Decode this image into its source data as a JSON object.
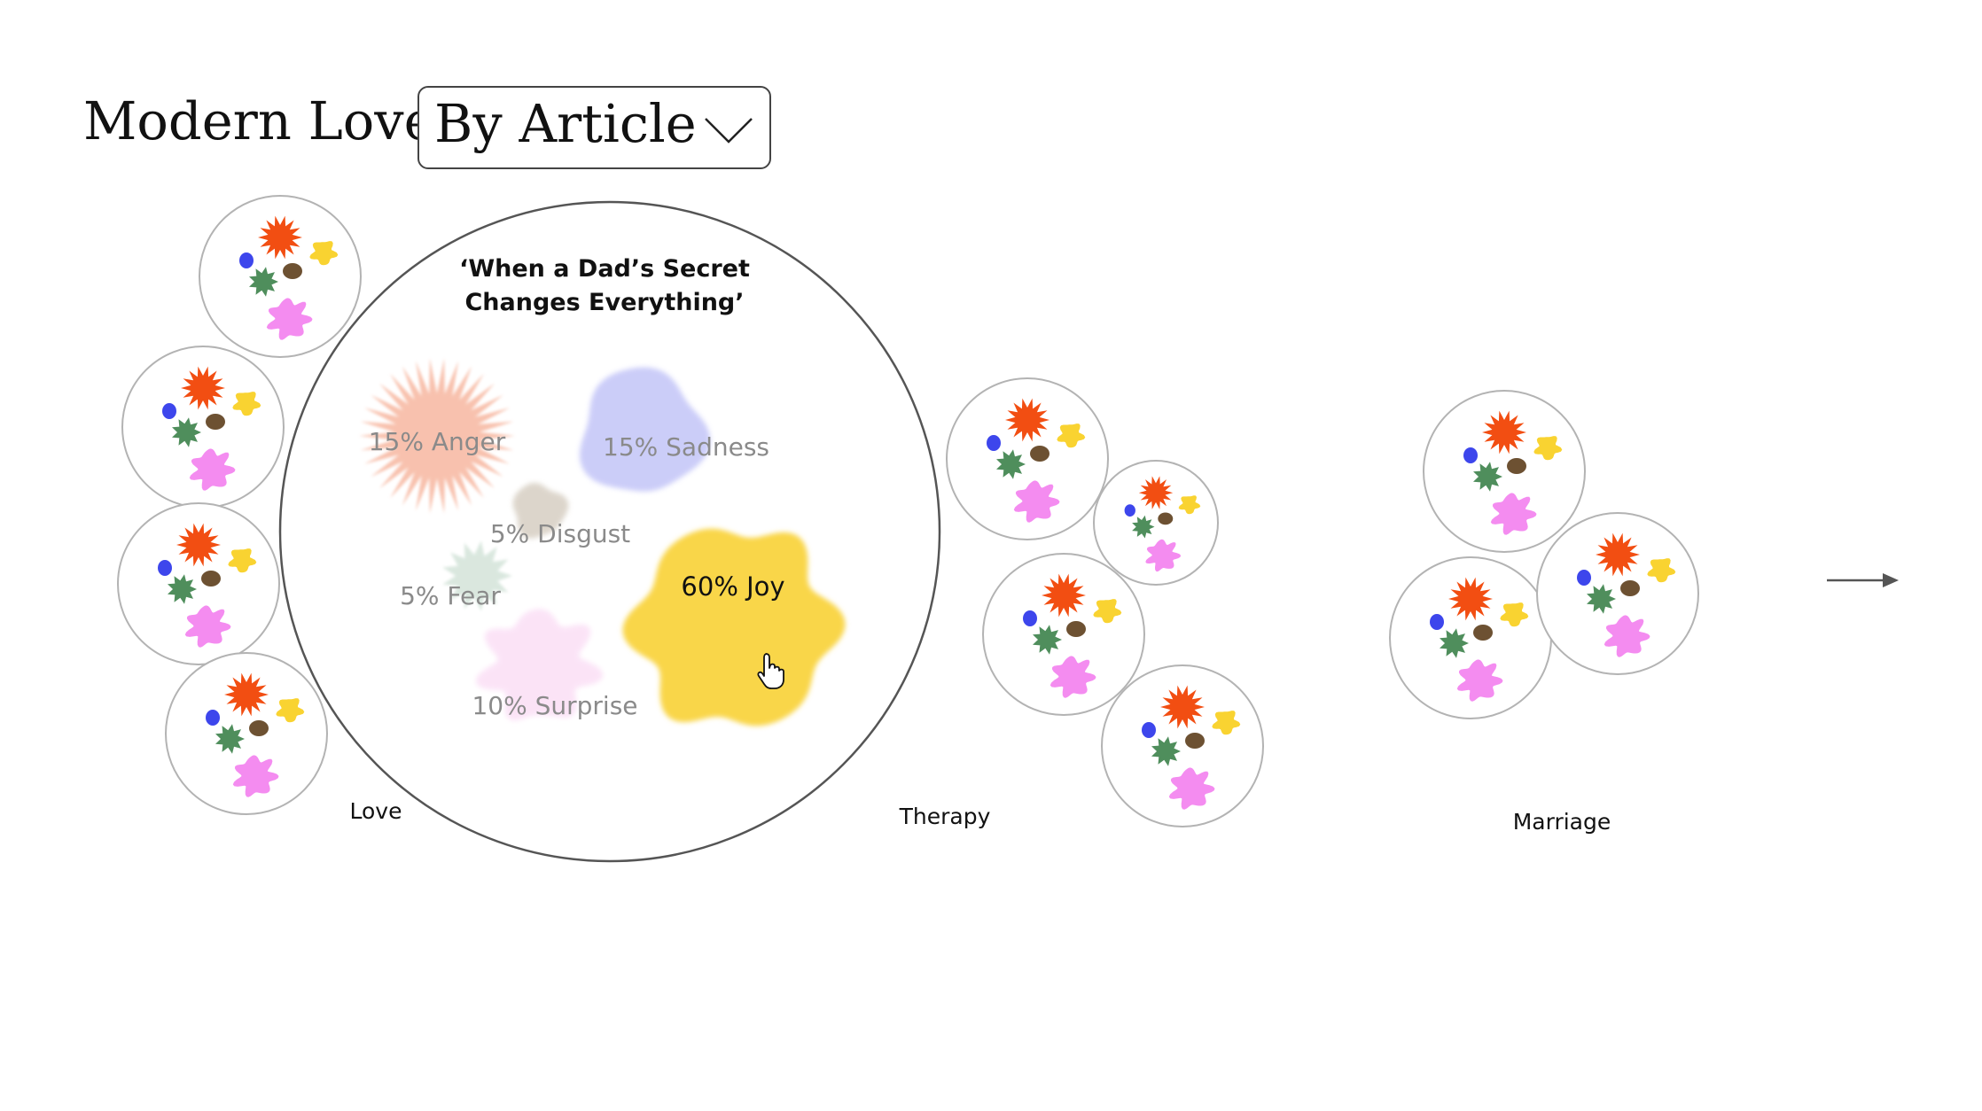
{
  "header": {
    "title": "Modern Love",
    "view_select": {
      "selected": "By Article"
    }
  },
  "groups": [
    {
      "label": "Love"
    },
    {
      "label": "Therapy"
    },
    {
      "label": "Marriage"
    }
  ],
  "featured_article": {
    "title_line1": "‘When a Dad’s Secret",
    "title_line2": "Changes Everything’",
    "emotions": [
      {
        "name": "Anger",
        "label": "15% Anger",
        "percent": 15,
        "color": "#f5a48a",
        "highlighted": false
      },
      {
        "name": "Sadness",
        "label": "15% Sadness",
        "percent": 15,
        "color": "#c9cbf8",
        "highlighted": false
      },
      {
        "name": "Disgust",
        "label": "5% Disgust",
        "percent": 5,
        "color": "#d8cfc4",
        "highlighted": false
      },
      {
        "name": "Fear",
        "label": "5% Fear",
        "percent": 5,
        "color": "#d5e3da",
        "highlighted": false
      },
      {
        "name": "Surprise",
        "label": "10% Surprise",
        "percent": 10,
        "color": "#fbe0f6",
        "highlighted": false
      },
      {
        "name": "Joy",
        "label": "60% Joy",
        "percent": 60,
        "color": "#f9d64a",
        "highlighted": true
      }
    ]
  },
  "colors": {
    "anger": "#f24e12",
    "joy": "#f9d331",
    "sadness": "#3d46ec",
    "disgust": "#6d5132",
    "fear": "#4f8e5c",
    "surprise": "#f48cf0",
    "circle_stroke": "#b3b3b3",
    "featured_stroke": "#555555"
  },
  "icons": {
    "dropdown": "chevron-down-icon",
    "next": "arrow-right-icon",
    "cursor": "hand-pointer-icon"
  }
}
